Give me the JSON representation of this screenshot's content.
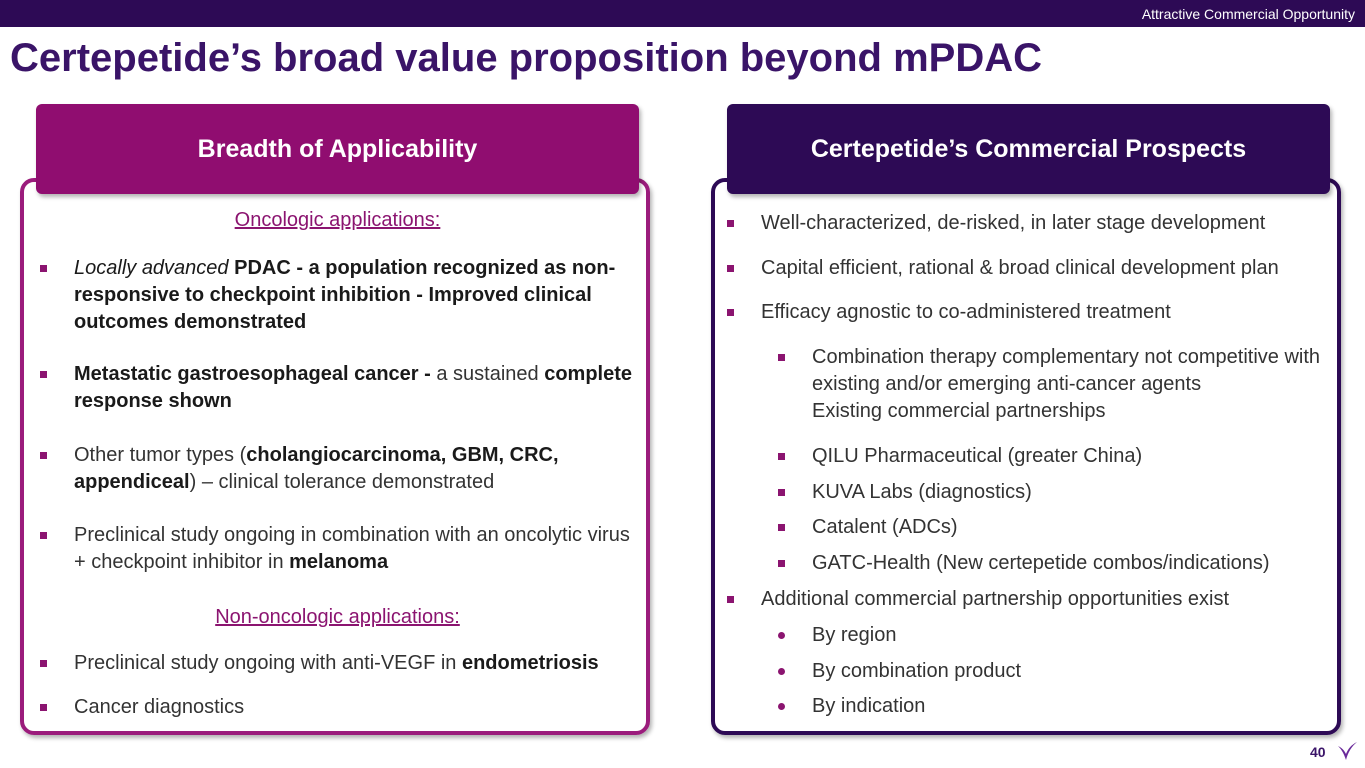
{
  "header": {
    "tag": "Attractive Commercial Opportunity",
    "title": "Certepetide’s broad value proposition beyond mPDAC",
    "page_number": "40"
  },
  "left_panel": {
    "title": "Breadth of Applicability",
    "items": [
      {
        "kind": "heading",
        "runs": [
          {
            "text": "Oncologic applications:",
            "style": "normal"
          }
        ]
      },
      {
        "kind": "bullet",
        "runs": [
          {
            "text": "Locally advanced",
            "style": "italic"
          },
          {
            "text": " PDAC - a population recognized as non-responsive to checkpoint inhibition - Improved clinical outcomes demonstrated",
            "style": "bold"
          }
        ]
      },
      {
        "kind": "bullet",
        "runs": [
          {
            "text": "Metastatic gastroesophageal cancer -",
            "style": "bold"
          },
          {
            "text": " a sustained ",
            "style": "normal"
          },
          {
            "text": "complete response shown",
            "style": "bold"
          }
        ]
      },
      {
        "kind": "bullet",
        "runs": [
          {
            "text": "Other tumor types (",
            "style": "normal"
          },
          {
            "text": "cholangiocarcinoma, GBM, CRC, appendiceal",
            "style": "bold"
          },
          {
            "text": ") – clinical tolerance demonstrated",
            "style": "normal"
          }
        ]
      },
      {
        "kind": "bullet",
        "runs": [
          {
            "text": "Preclinical study ongoing in combination with an oncolytic virus + checkpoint inhibitor in ",
            "style": "normal"
          },
          {
            "text": "melanoma",
            "style": "bold"
          }
        ]
      },
      {
        "kind": "heading",
        "runs": [
          {
            "text": "Non-oncologic applications:",
            "style": "normal"
          }
        ]
      },
      {
        "kind": "bullet",
        "runs": [
          {
            "text": "Preclinical study ongoing with anti-VEGF in ",
            "style": "normal"
          },
          {
            "text": "endometriosis",
            "style": "bold"
          }
        ]
      },
      {
        "kind": "bullet",
        "runs": [
          {
            "text": "Cancer diagnostics",
            "style": "normal"
          }
        ]
      }
    ]
  },
  "right_panel": {
    "title": "Certepetide’s Commercial Prospects",
    "items": [
      {
        "level": 1,
        "runs": [
          {
            "text": "Well-characterized, de-risked, in later stage development",
            "style": "normal"
          }
        ]
      },
      {
        "level": 1,
        "runs": [
          {
            "text": "Capital efficient, rational & broad clinical development plan",
            "style": "normal"
          }
        ]
      },
      {
        "level": 1,
        "runs": [
          {
            "text": "Efficacy agnostic to co-administered treatment",
            "style": "normal"
          }
        ]
      },
      {
        "level": 2,
        "runs": [
          {
            "text": "Combination therapy complementary not competitive with existing and/or emerging anti-cancer agents",
            "style": "normal"
          },
          {
            "text": "Existing commercial partnerships",
            "style": "newline"
          }
        ]
      },
      {
        "level": 2,
        "runs": [
          {
            "text": "QILU Pharmaceutical (greater China)",
            "style": "normal"
          }
        ]
      },
      {
        "level": 2,
        "runs": [
          {
            "text": "KUVA Labs (diagnostics)",
            "style": "normal"
          }
        ]
      },
      {
        "level": 2,
        "runs": [
          {
            "text": "Catalent (ADCs)",
            "style": "normal"
          }
        ]
      },
      {
        "level": 2,
        "runs": [
          {
            "text": "GATC-Health (New certepetide combos/indications)",
            "style": "normal"
          }
        ]
      },
      {
        "level": 1,
        "runs": [
          {
            "text": "Additional commercial partnership opportunities exist",
            "style": "normal"
          }
        ]
      },
      {
        "level": 3,
        "runs": [
          {
            "text": "By region",
            "style": "normal"
          }
        ]
      },
      {
        "level": 3,
        "runs": [
          {
            "text": "By combination product",
            "style": "normal"
          }
        ]
      },
      {
        "level": 3,
        "runs": [
          {
            "text": "By indication",
            "style": "normal"
          }
        ]
      }
    ]
  }
}
